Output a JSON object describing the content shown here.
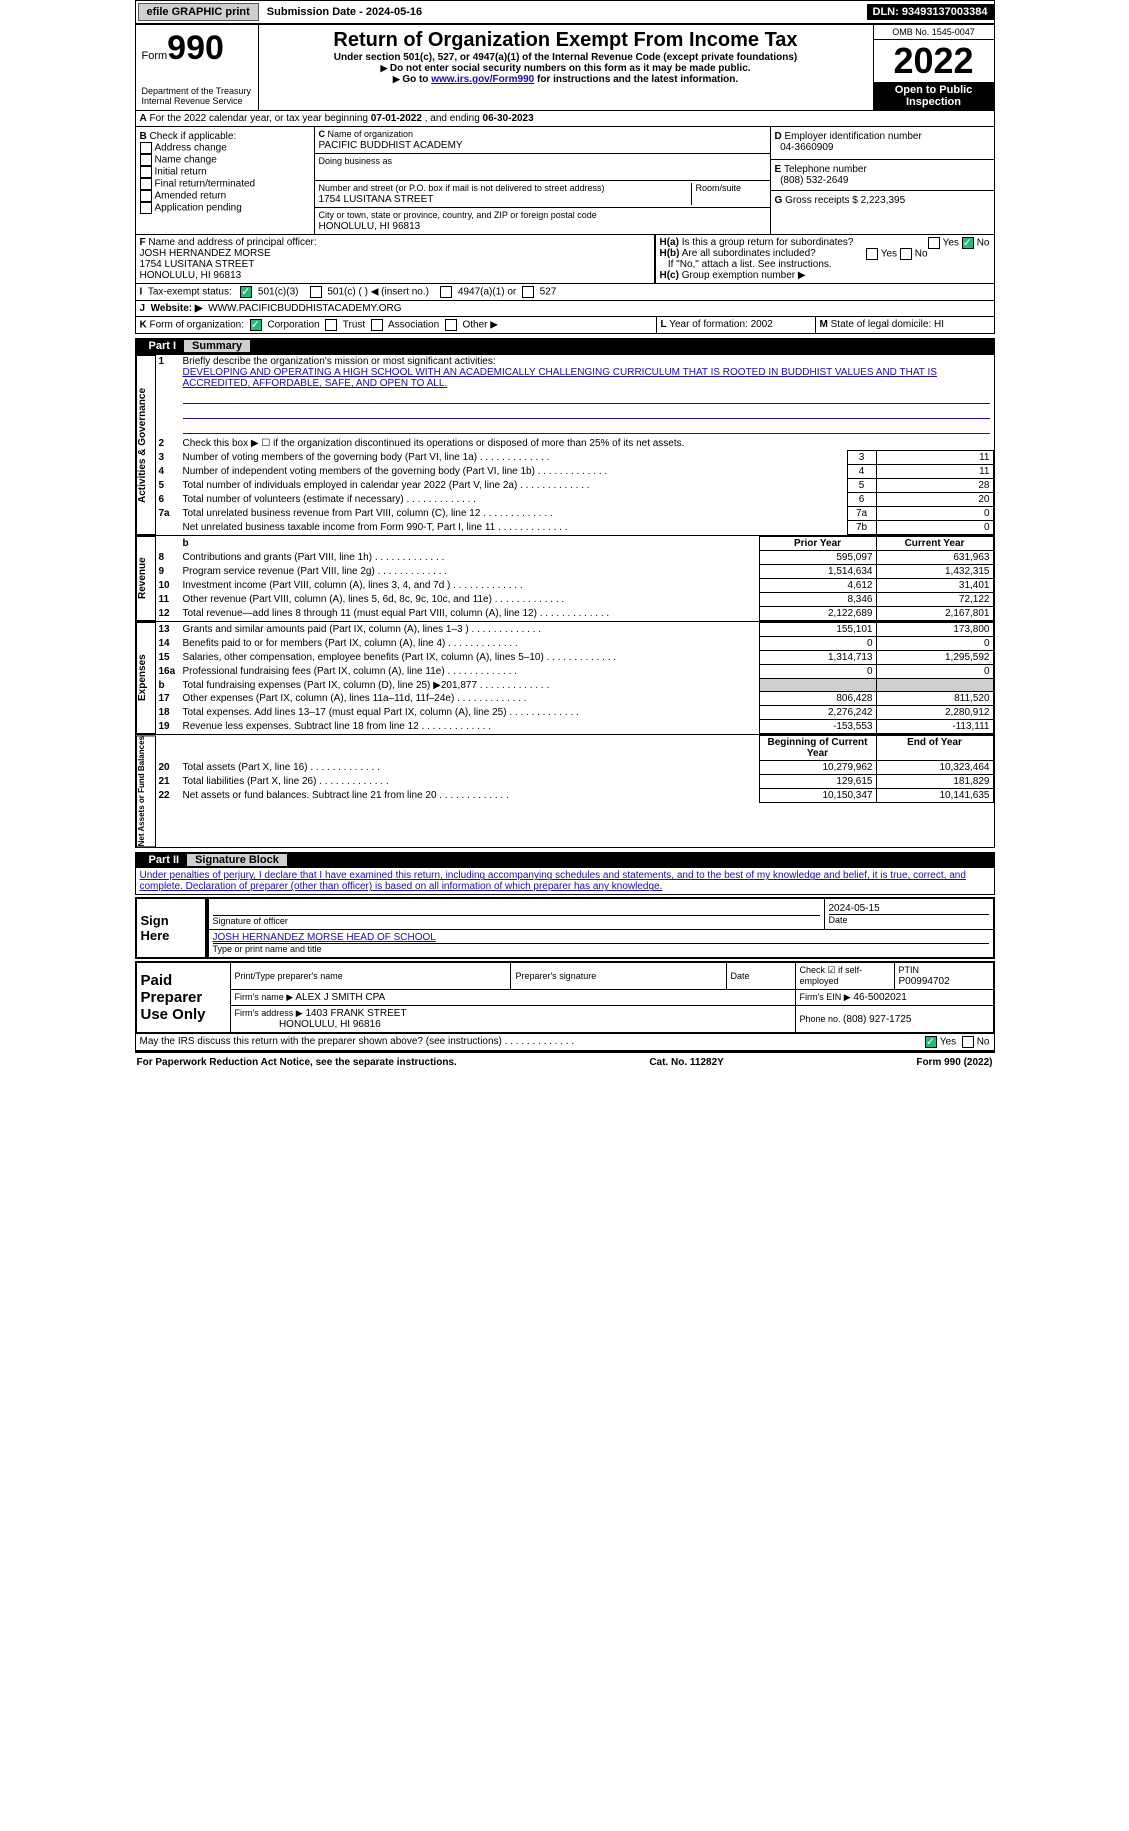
{
  "topbar": {
    "efile": "efile GRAPHIC print",
    "sub_label": "Submission Date - ",
    "sub_date": "2024-05-16",
    "dln_label": "DLN: ",
    "dln": "93493137003384"
  },
  "hdr": {
    "form_word": "Form",
    "form_no": "990",
    "dept1": "Department of the Treasury",
    "dept2": "Internal Revenue Service",
    "title": "Return of Organization Exempt From Income Tax",
    "sub1": "Under section 501(c), 527, or 4947(a)(1) of the Internal Revenue Code (except private foundations)",
    "sub2": "Do not enter social security numbers on this form as it may be made public.",
    "sub3_a": "Go to ",
    "sub3_link": "www.irs.gov/Form990",
    "sub3_b": " for instructions and the latest information.",
    "omb": "OMB No. 1545-0047",
    "year": "2022",
    "open": "Open to Public Inspection"
  },
  "A": {
    "text_a": "For the 2022 calendar year, or tax year beginning ",
    "begin": "07-01-2022",
    "text_b": " , and ending ",
    "end": "06-30-2023"
  },
  "B": {
    "label": "Check if applicable:",
    "opts": [
      "Address change",
      "Name change",
      "Initial return",
      "Final return/terminated",
      "Amended return",
      "Application pending"
    ]
  },
  "C": {
    "name_lbl": "Name of organization",
    "name": "PACIFIC BUDDHIST ACADEMY",
    "dba_lbl": "Doing business as",
    "addr_lbl": "Number and street (or P.O. box if mail is not delivered to street address)",
    "addr": "1754 LUSITANA STREET",
    "room_lbl": "Room/suite",
    "city_lbl": "City or town, state or province, country, and ZIP or foreign postal code",
    "city": "HONOLULU, HI  96813"
  },
  "D": {
    "lbl": "Employer identification number",
    "val": "04-3660909"
  },
  "E": {
    "lbl": "Telephone number",
    "val": "(808) 532-2649"
  },
  "G": {
    "lbl": "Gross receipts $ ",
    "val": "2,223,395"
  },
  "F": {
    "lbl": "Name and address of principal officer:",
    "name": "JOSH HERNANDEZ MORSE",
    "addr1": "1754 LUSITANA STREET",
    "addr2": "HONOLULU, HI  96813"
  },
  "H": {
    "a": "Is this a group return for subordinates?",
    "b": "Are all subordinates included?",
    "b2": "If \"No,\" attach a list. See instructions.",
    "c": "Group exemption number ▶",
    "yes": "Yes",
    "no": "No"
  },
  "I": {
    "lbl": "Tax-exempt status:",
    "o1": "501(c)(3)",
    "o2": "501(c) (  ) ◀ (insert no.)",
    "o3": "4947(a)(1) or",
    "o4": "527"
  },
  "J": {
    "lbl": "Website: ▶",
    "val": "WWW.PACIFICBUDDHISTACADEMY.ORG"
  },
  "K": {
    "lbl": "Form of organization:",
    "o1": "Corporation",
    "o2": "Trust",
    "o3": "Association",
    "o4": "Other ▶"
  },
  "L": {
    "lbl": "Year of formation: ",
    "val": "2002"
  },
  "M": {
    "lbl": "State of legal domicile: ",
    "val": "HI"
  },
  "parts": {
    "p1": "Part I",
    "p1t": "Summary",
    "p2": "Part II",
    "p2t": "Signature Block"
  },
  "p1": {
    "l1": "Briefly describe the organization's mission or most significant activities:",
    "mission": "DEVELOPING AND OPERATING A HIGH SCHOOL WITH AN ACADEMICALLY CHALLENGING CURRICULUM THAT IS ROOTED IN BUDDHIST VALUES AND THAT IS ACCREDITED, AFFORDABLE, SAFE, AND OPEN TO ALL.",
    "l2": "Check this box ▶ ☐ if the organization discontinued its operations or disposed of more than 25% of its net assets.",
    "rows_gov": [
      {
        "n": "3",
        "t": "Number of voting members of the governing body (Part VI, line 1a)",
        "box": "3",
        "v": "11"
      },
      {
        "n": "4",
        "t": "Number of independent voting members of the governing body (Part VI, line 1b)",
        "box": "4",
        "v": "11"
      },
      {
        "n": "5",
        "t": "Total number of individuals employed in calendar year 2022 (Part V, line 2a)",
        "box": "5",
        "v": "28"
      },
      {
        "n": "6",
        "t": "Total number of volunteers (estimate if necessary)",
        "box": "6",
        "v": "20"
      },
      {
        "n": "7a",
        "t": "Total unrelated business revenue from Part VIII, column (C), line 12",
        "box": "7a",
        "v": "0"
      },
      {
        "n": "",
        "t": "Net unrelated business taxable income from Form 990-T, Part I, line 11",
        "box": "7b",
        "v": "0"
      }
    ],
    "head_prior": "Prior Year",
    "head_curr": "Current Year",
    "rev": [
      {
        "n": "8",
        "t": "Contributions and grants (Part VIII, line 1h)",
        "p": "595,097",
        "c": "631,963"
      },
      {
        "n": "9",
        "t": "Program service revenue (Part VIII, line 2g)",
        "p": "1,514,634",
        "c": "1,432,315"
      },
      {
        "n": "10",
        "t": "Investment income (Part VIII, column (A), lines 3, 4, and 7d )",
        "p": "4,612",
        "c": "31,401"
      },
      {
        "n": "11",
        "t": "Other revenue (Part VIII, column (A), lines 5, 6d, 8c, 9c, 10c, and 11e)",
        "p": "8,346",
        "c": "72,122"
      },
      {
        "n": "12",
        "t": "Total revenue—add lines 8 through 11 (must equal Part VIII, column (A), line 12)",
        "p": "2,122,689",
        "c": "2,167,801"
      }
    ],
    "exp": [
      {
        "n": "13",
        "t": "Grants and similar amounts paid (Part IX, column (A), lines 1–3 )",
        "p": "155,101",
        "c": "173,800"
      },
      {
        "n": "14",
        "t": "Benefits paid to or for members (Part IX, column (A), line 4)",
        "p": "0",
        "c": "0"
      },
      {
        "n": "15",
        "t": "Salaries, other compensation, employee benefits (Part IX, column (A), lines 5–10)",
        "p": "1,314,713",
        "c": "1,295,592"
      },
      {
        "n": "16a",
        "t": "Professional fundraising fees (Part IX, column (A), line 11e)",
        "p": "0",
        "c": "0"
      },
      {
        "n": "b",
        "t": "Total fundraising expenses (Part IX, column (D), line 25) ▶201,877",
        "p": "",
        "c": "",
        "grey": true
      },
      {
        "n": "17",
        "t": "Other expenses (Part IX, column (A), lines 11a–11d, 11f–24e)",
        "p": "806,428",
        "c": "811,520"
      },
      {
        "n": "18",
        "t": "Total expenses. Add lines 13–17 (must equal Part IX, column (A), line 25)",
        "p": "2,276,242",
        "c": "2,280,912"
      },
      {
        "n": "19",
        "t": "Revenue less expenses. Subtract line 18 from line 12",
        "p": "-153,553",
        "c": "-113,111"
      }
    ],
    "head_beg": "Beginning of Current Year",
    "head_end": "End of Year",
    "net": [
      {
        "n": "20",
        "t": "Total assets (Part X, line 16)",
        "p": "10,279,962",
        "c": "10,323,464"
      },
      {
        "n": "21",
        "t": "Total liabilities (Part X, line 26)",
        "p": "129,615",
        "c": "181,829"
      },
      {
        "n": "22",
        "t": "Net assets or fund balances. Subtract line 21 from line 20",
        "p": "10,150,347",
        "c": "10,141,635"
      }
    ],
    "side": {
      "gov": "Activities & Governance",
      "rev": "Revenue",
      "exp": "Expenses",
      "net": "Net Assets or Fund Balances"
    }
  },
  "p2": {
    "decl": "Under penalties of perjury, I declare that I have examined this return, including accompanying schedules and statements, and to the best of my knowledge and belief, it is true, correct, and complete. Declaration of preparer (other than officer) is based on all information of which preparer has any knowledge.",
    "sign_here": "Sign Here",
    "sig_off": "Signature of officer",
    "date": "Date",
    "sig_date": "2024-05-15",
    "typed": "JOSH HERNANDEZ MORSE  HEAD OF SCHOOL",
    "typed_lbl": "Type or print name and title",
    "paid": "Paid Preparer Use Only",
    "pp_name": "Print/Type preparer's name",
    "pp_sig": "Preparer's signature",
    "pp_check": "Check ☑ if self-employed",
    "ptin_lbl": "PTIN",
    "ptin": "P00994702",
    "firm_lbl": "Firm's name   ▶",
    "firm": "ALEX J SMITH CPA",
    "ein_lbl": "Firm's EIN ▶",
    "ein": "46-5002021",
    "addr_lbl": "Firm's address ▶",
    "addr1": "1403 FRANK STREET",
    "addr2": "HONOLULU, HI  96816",
    "phone_lbl": "Phone no. ",
    "phone": "(808) 927-1725",
    "may": "May the IRS discuss this return with the preparer shown above? (see instructions)",
    "yes": "Yes",
    "no": "No"
  },
  "footer": {
    "l": "For Paperwork Reduction Act Notice, see the separate instructions.",
    "c": "Cat. No. 11282Y",
    "r": "Form 990 (2022)"
  }
}
